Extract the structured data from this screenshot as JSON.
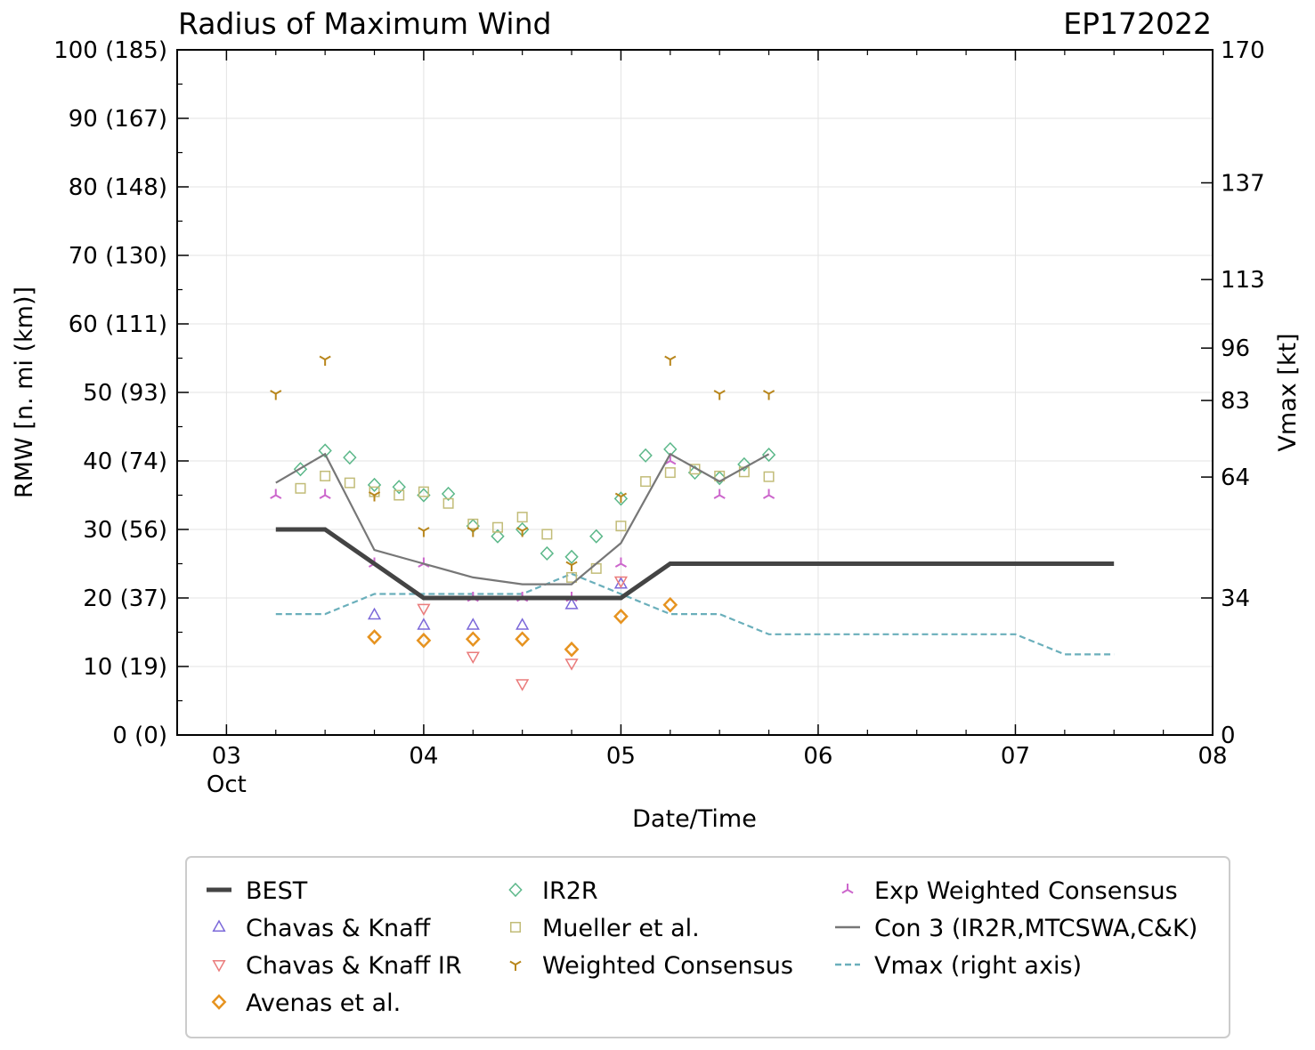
{
  "chart_data": {
    "type": "line",
    "title": "Radius of Maximum Wind",
    "storm_id": "EP172022",
    "xlabel": "Date/Time",
    "ylabel": "RMW [n. mi (km)]",
    "y2label": "Vmax [kt]",
    "x_units": "days since Oct 03 00Z",
    "xlim": [
      -0.25,
      5.0
    ],
    "ylim": [
      0,
      100
    ],
    "y2lim": [
      0,
      170
    ],
    "x_ticks": [
      {
        "x": 0,
        "label": "03",
        "sublabel": "Oct"
      },
      {
        "x": 1,
        "label": "04",
        "sublabel": ""
      },
      {
        "x": 2,
        "label": "05",
        "sublabel": ""
      },
      {
        "x": 3,
        "label": "06",
        "sublabel": ""
      },
      {
        "x": 4,
        "label": "07",
        "sublabel": ""
      },
      {
        "x": 5,
        "label": "08",
        "sublabel": ""
      }
    ],
    "y_ticks": [
      {
        "y": 0,
        "label": "0 (0)"
      },
      {
        "y": 10,
        "label": "10 (19)"
      },
      {
        "y": 20,
        "label": "20 (37)"
      },
      {
        "y": 30,
        "label": "30 (56)"
      },
      {
        "y": 40,
        "label": "40 (74)"
      },
      {
        "y": 50,
        "label": "50 (93)"
      },
      {
        "y": 60,
        "label": "60 (111)"
      },
      {
        "y": 70,
        "label": "70 (130)"
      },
      {
        "y": 80,
        "label": "80 (148)"
      },
      {
        "y": 90,
        "label": "90 (167)"
      },
      {
        "y": 100,
        "label": "100 (185)"
      }
    ],
    "y2_ticks": [
      {
        "v": 0,
        "label": "0"
      },
      {
        "v": 34,
        "label": "34"
      },
      {
        "v": 64,
        "label": "64"
      },
      {
        "v": 83,
        "label": "83"
      },
      {
        "v": 96,
        "label": "96"
      },
      {
        "v": 113,
        "label": "113"
      },
      {
        "v": 137,
        "label": "137"
      },
      {
        "v": 170,
        "label": "170"
      }
    ],
    "grid": true,
    "legend_position": "below plot",
    "series": [
      {
        "name": "BEST",
        "kind": "line",
        "color": "#444444",
        "x": [
          0.25,
          0.5,
          0.75,
          1.0,
          1.25,
          1.5,
          1.75,
          2.0,
          2.25,
          2.5,
          3.0,
          3.5,
          4.0,
          4.5
        ],
        "y": [
          30,
          30,
          25,
          20,
          20,
          20,
          20,
          20,
          25,
          25,
          25,
          25,
          25,
          25
        ]
      },
      {
        "name": "Chavas & Knaff",
        "kind": "marker",
        "marker": "triangle-up",
        "color": "#7b68d9",
        "x": [
          0.75,
          1.0,
          1.25,
          1.5,
          1.75,
          2.0
        ],
        "y": [
          17.5,
          16,
          16,
          16,
          19,
          22
        ]
      },
      {
        "name": "Chavas & Knaff IR",
        "kind": "marker",
        "marker": "triangle-down",
        "color": "#ea7b7b",
        "x": [
          1.0,
          1.25,
          1.5,
          1.75,
          2.0
        ],
        "y": [
          18.5,
          11.5,
          7.5,
          10.5,
          22.5
        ]
      },
      {
        "name": "Avenas et al.",
        "kind": "marker",
        "marker": "diamond-thick",
        "color": "#e69320",
        "x": [
          0.75,
          1.0,
          1.25,
          1.5,
          1.75,
          2.0,
          2.25
        ],
        "y": [
          14.3,
          13.8,
          14.0,
          14.0,
          12.5,
          17.3,
          19.0
        ]
      },
      {
        "name": "IR2R",
        "kind": "marker",
        "marker": "diamond",
        "color": "#5cb88a",
        "x": [
          0.375,
          0.5,
          0.625,
          0.75,
          0.875,
          1.0,
          1.125,
          1.25,
          1.375,
          1.5,
          1.625,
          1.75,
          1.875,
          2.0,
          2.125,
          2.25,
          2.375,
          2.5,
          2.625,
          2.75
        ],
        "y": [
          38.8,
          41.5,
          40.5,
          36.5,
          36.2,
          35.0,
          35.2,
          30.5,
          29.0,
          30.0,
          26.5,
          26.0,
          29.0,
          34.5,
          40.8,
          41.7,
          38.3,
          37.5,
          39.5,
          40.9
        ]
      },
      {
        "name": "Mueller et al.",
        "kind": "marker",
        "marker": "square",
        "color": "#c2bc78",
        "x": [
          0.375,
          0.5,
          0.625,
          0.75,
          0.875,
          1.0,
          1.125,
          1.25,
          1.375,
          1.5,
          1.625,
          1.75,
          1.875,
          2.0,
          2.125,
          2.25,
          2.375,
          2.5,
          2.625,
          2.75
        ],
        "y": [
          36.0,
          37.8,
          36.8,
          35.5,
          35.0,
          35.5,
          33.8,
          30.8,
          30.3,
          31.8,
          29.3,
          23.0,
          24.3,
          30.5,
          37.0,
          38.3,
          38.8,
          37.8,
          38.4,
          37.7
        ]
      },
      {
        "name": "Weighted Consensus",
        "kind": "marker",
        "marker": "tri-down",
        "color": "#b8861c",
        "x": [
          0.25,
          0.5,
          0.75,
          1.0,
          1.25,
          1.5,
          1.75,
          2.0,
          2.25,
          2.5,
          2.75
        ],
        "y": [
          49.8,
          54.8,
          35.0,
          29.8,
          29.8,
          29.8,
          24.8,
          34.8,
          54.8,
          49.8,
          49.8
        ]
      },
      {
        "name": "Exp Weighted Consensus",
        "kind": "marker",
        "marker": "tri-up",
        "color": "#cc66cc",
        "x": [
          0.25,
          0.5,
          0.75,
          1.0,
          1.25,
          1.5,
          1.75,
          2.0,
          2.25,
          2.5,
          2.75
        ],
        "y": [
          35.0,
          35.0,
          25.0,
          25.0,
          20.0,
          20.0,
          20.0,
          25.0,
          40.0,
          35.0,
          35.0
        ]
      },
      {
        "name": "Con 3 (IR2R,MTCSWA,C&K)",
        "kind": "line",
        "color": "#777777",
        "x": [
          0.25,
          0.5,
          0.75,
          1.0,
          1.25,
          1.5,
          1.75,
          2.0,
          2.25,
          2.5,
          2.75
        ],
        "y": [
          36.8,
          41.0,
          27.0,
          25.0,
          23.0,
          22.0,
          22.0,
          28.0,
          41.0,
          37.0,
          41.0
        ]
      },
      {
        "name": "Vmax (right axis)",
        "kind": "dashed-line",
        "axis": "right",
        "color": "#6aafbb",
        "x": [
          0.25,
          0.5,
          0.75,
          1.0,
          1.5,
          1.75,
          2.0,
          2.25,
          2.5,
          2.75,
          3.0,
          3.5,
          4.0,
          4.25,
          4.5
        ],
        "y": [
          30,
          30,
          35,
          35,
          35,
          40,
          35,
          30,
          30,
          25,
          25,
          25,
          25,
          20,
          20
        ]
      }
    ]
  }
}
